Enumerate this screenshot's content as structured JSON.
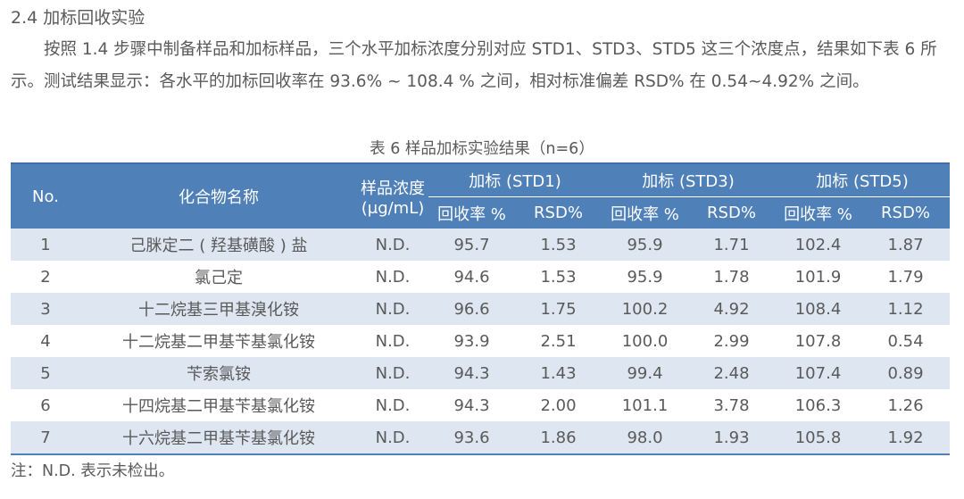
{
  "section": {
    "heading": "2.4 加标回收实验",
    "paragraph": "按照 1.4 步骤中制备样品和加标样品，三个水平加标浓度分别对应 STD1、STD3、STD5 这三个浓度点，结果如下表 6 所示。测试结果显示：各水平的加标回收率在 93.6% ~ 108.4 % 之间，相对标准偏差 RSD% 在 0.54~4.92% 之间。"
  },
  "table": {
    "caption": "表 6    样品加标实验结果（n=6）",
    "headers": {
      "no": "No.",
      "compound": "化合物名称",
      "sample_conc_line1": "样品浓度",
      "sample_conc_line2": "(μg/mL)",
      "group1": "加标 (STD1)",
      "group2": "加标 (STD3)",
      "group3": "加标 (STD5)",
      "recovery": "回收率 %",
      "rsd": "RSD%"
    },
    "rows": [
      {
        "no": "1",
        "name": "己脒定二 ( 羟基磺酸 ) 盐",
        "conc": "N.D.",
        "r1": "95.7",
        "s1": "1.53",
        "r3": "95.9",
        "s3": "1.71",
        "r5": "102.4",
        "s5": "1.87"
      },
      {
        "no": "2",
        "name": "氯己定",
        "conc": "N.D.",
        "r1": "94.6",
        "s1": "1.53",
        "r3": "95.9",
        "s3": "1.78",
        "r5": "101.9",
        "s5": "1.79"
      },
      {
        "no": "3",
        "name": "十二烷基三甲基溴化铵",
        "conc": "N.D.",
        "r1": "96.6",
        "s1": "1.75",
        "r3": "100.2",
        "s3": "4.92",
        "r5": "108.4",
        "s5": "1.12"
      },
      {
        "no": "4",
        "name": "十二烷基二甲基苄基氯化铵",
        "conc": "N.D.",
        "r1": "93.9",
        "s1": "2.51",
        "r3": "100.0",
        "s3": "2.99",
        "r5": "107.8",
        "s5": "0.54"
      },
      {
        "no": "5",
        "name": "苄索氯铵",
        "conc": "N.D.",
        "r1": "94.3",
        "s1": "1.43",
        "r3": "99.4",
        "s3": "2.48",
        "r5": "107.4",
        "s5": "0.89"
      },
      {
        "no": "6",
        "name": "十四烷基二甲基苄基氯化铵",
        "conc": "N.D.",
        "r1": "94.3",
        "s1": "2.00",
        "r3": "101.1",
        "s3": "3.78",
        "r5": "106.3",
        "s5": "1.26"
      },
      {
        "no": "7",
        "name": "十六烷基二甲基苄基氯化铵",
        "conc": "N.D.",
        "r1": "93.6",
        "s1": "1.86",
        "r3": "98.0",
        "s3": "1.93",
        "r5": "105.8",
        "s5": "1.92"
      }
    ]
  },
  "note": "注：N.D. 表示未检出。",
  "colors": {
    "header_bg": "#4f80b8",
    "stripe_bg": "#dde6f1",
    "text": "#5a5a5a"
  }
}
